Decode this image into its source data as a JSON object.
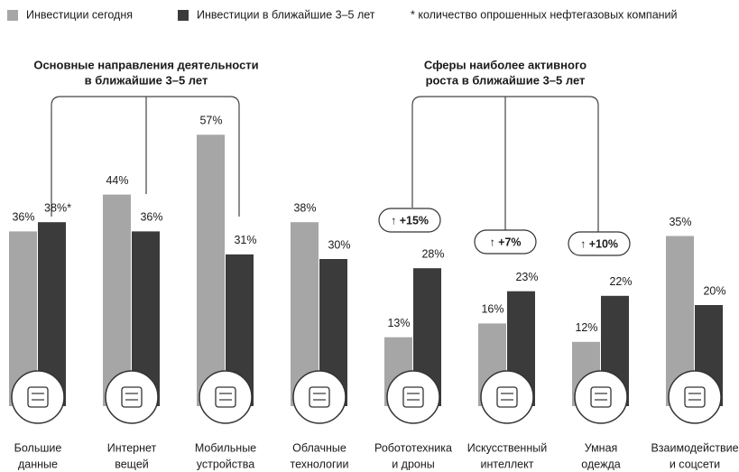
{
  "chart_data": {
    "type": "bar",
    "series": [
      {
        "name": "Инвестиции сегодня",
        "color": "#a6a6a6",
        "values": [
          36,
          44,
          57,
          38,
          13,
          16,
          12,
          35
        ],
        "value_labels": [
          "36%",
          "44%",
          "57%",
          "38%",
          "13%",
          "16%",
          "12%",
          "35%"
        ]
      },
      {
        "name": "Инвестиции в ближайшие 3–5 лет",
        "color": "#3b3b3b",
        "values": [
          38,
          36,
          31,
          30,
          28,
          23,
          22,
          20
        ],
        "value_labels": [
          "38%*",
          "36%",
          "31%",
          "30%",
          "28%",
          "23%",
          "22%",
          "20%"
        ]
      }
    ],
    "categories": [
      [
        "Большие",
        "данные"
      ],
      [
        "Интернет",
        "вещей"
      ],
      [
        "Мобильные",
        "устройства"
      ],
      [
        "Облачные",
        "технологии"
      ],
      [
        "Робототехника",
        "и дроны"
      ],
      [
        "Искусственный",
        "интеллект"
      ],
      [
        "Умная",
        "одежда"
      ],
      [
        "Взаимодействие",
        "и соцсети"
      ]
    ],
    "footnote": "* количество опрошенных нефтегазовых компаний",
    "group_titles": [
      [
        "Основные направления деятельности",
        "в ближайшие 3–5 лет"
      ],
      [
        "Сферы наиболее активного",
        "роста в ближайшие 3–5 лет"
      ]
    ],
    "growth_badges": [
      "↑ +15%",
      "↑ +7%",
      "↑ +10%"
    ]
  }
}
